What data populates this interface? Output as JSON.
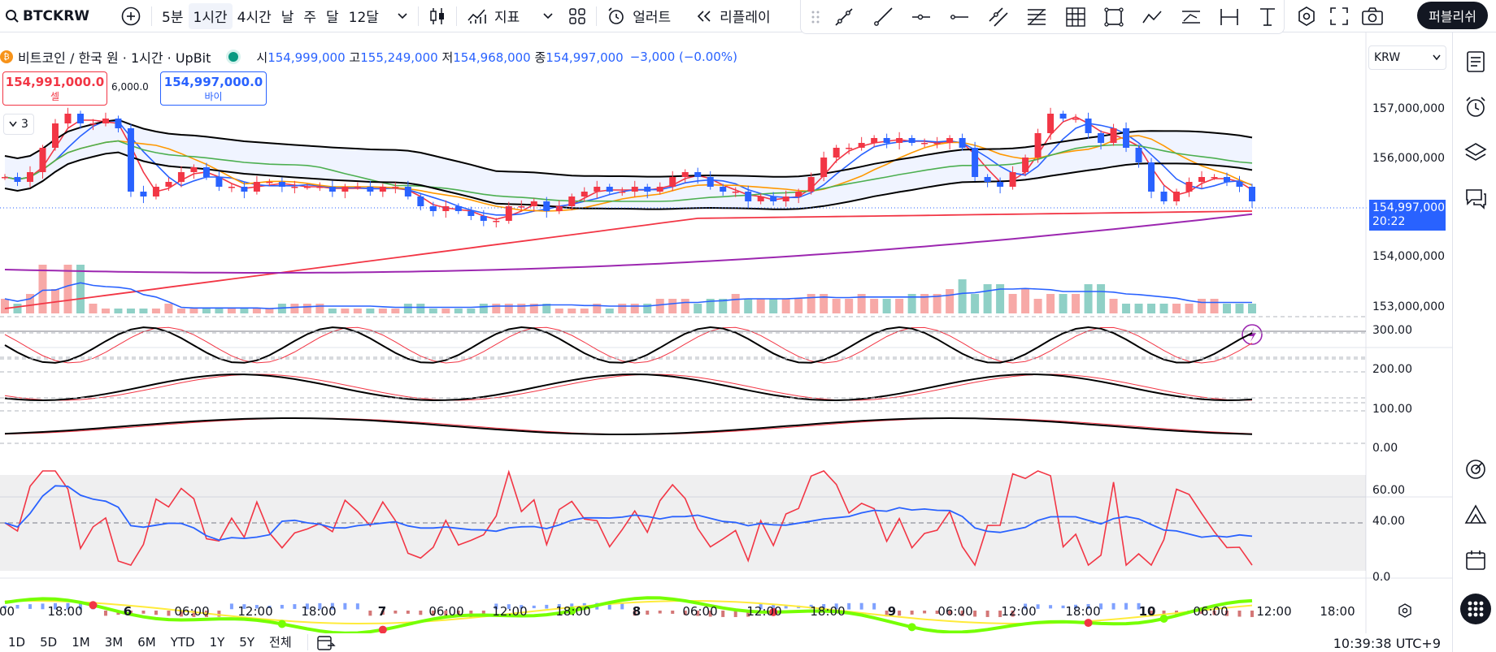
{
  "toolbar": {
    "symbol": "BTCKRW",
    "intervals": [
      "5분",
      "1시간",
      "4시간",
      "날",
      "주",
      "달",
      "12달"
    ],
    "active_interval": "1시간",
    "indicators_label": "지표",
    "alert_label": "얼러트",
    "replay_label": "리플레이",
    "publish_label": "퍼블리쉬"
  },
  "legend": {
    "title": "비트코인 / 한국 원 · 1시간 · UpBit",
    "open_label": "시",
    "open": "154,999,000",
    "high_label": "고",
    "high": "155,249,000",
    "low_label": "저",
    "low": "154,968,000",
    "close_label": "종",
    "close": "154,997,000",
    "change": "−3,000 (−0.00%)"
  },
  "trade": {
    "sell_price": "154,991,000.0",
    "sell_label": "셀",
    "buy_price": "154,997,000.0",
    "buy_label": "바이",
    "spread": "6,000.0"
  },
  "collapse_count": "3",
  "currency": "KRW",
  "price_axis": [
    "157,000,000",
    "156,000,000",
    "154,000,000",
    "153,000,000"
  ],
  "last_price": {
    "value": "154,997,000",
    "countdown": "20:22"
  },
  "osc_axis": [
    "300.00",
    "200.00",
    "100.00",
    "0.00"
  ],
  "rsi_axis": [
    "60.00",
    "40.00"
  ],
  "wave_axis": [
    "0.0"
  ],
  "time_axis": [
    ":00",
    "18:00",
    "6",
    "06:00",
    "12:00",
    "18:00",
    "7",
    "06:00",
    "12:00",
    "18:00",
    "8",
    "06:00",
    "12:00",
    "18:00",
    "9",
    "06:00",
    "12:00",
    "18:00",
    "10",
    "06:00",
    "12:00",
    "18:00"
  ],
  "ranges": [
    "1D",
    "5D",
    "1M",
    "3M",
    "6M",
    "YTD",
    "1Y",
    "5Y",
    "전체"
  ],
  "clock": "10:39:38 UTC+9",
  "colors": {
    "up": "#f23645",
    "down": "#2962ff",
    "accent": "#2962ff"
  },
  "chart_data": {
    "type": "candlestick",
    "symbol": "BTCKRW",
    "y_range": [
      152800000,
      157800000
    ],
    "closes": [
      155500000,
      155400000,
      155600000,
      156100000,
      156600000,
      156800000,
      156600000,
      156600000,
      156700000,
      156500000,
      155200000,
      155100000,
      155300000,
      155400000,
      155600000,
      155700000,
      155500000,
      155300000,
      155300000,
      155200000,
      155400000,
      155400000,
      155300000,
      155300000,
      155300000,
      155300000,
      155200000,
      155300000,
      155300000,
      155200000,
      155300000,
      155300000,
      155100000,
      154900000,
      154800000,
      154900000,
      154800000,
      154700000,
      154600000,
      154600000,
      154900000,
      154900000,
      155000000,
      154800000,
      154900000,
      155100000,
      155200000,
      155300000,
      155200000,
      155200000,
      155300000,
      155200000,
      155300000,
      155500000,
      155600000,
      155500000,
      155300000,
      155200000,
      155200000,
      155000000,
      155100000,
      155000000,
      155100000,
      155200000,
      155500000,
      155900000,
      156100000,
      156100000,
      156200000,
      156300000,
      156200000,
      156300000,
      156200000,
      156200000,
      156200000,
      156300000,
      156100000,
      155500000,
      155400000,
      155300000,
      155600000,
      155900000,
      156400000,
      156800000,
      156700000,
      156700000,
      156400000,
      156200000,
      156500000,
      156100000,
      155800000,
      155200000,
      155000000,
      155200000,
      155400000,
      155500000,
      155500000,
      155400000,
      155300000,
      155000000
    ],
    "volume_relative": [
      0.3,
      0.2,
      0.4,
      1.0,
      0.5,
      1.0,
      1.0,
      0.2,
      0.1,
      0.1,
      0.1,
      0.1,
      0.1,
      0.2,
      0.1,
      0.1,
      0.1,
      0.1,
      0.1,
      0.1,
      0.1,
      0.1,
      0.2,
      0.2,
      0.2,
      0.2,
      0.1,
      0.1,
      0.1,
      0.1,
      0.1,
      0.1,
      0.2,
      0.2,
      0.1,
      0.1,
      0.1,
      0.1,
      0.2,
      0.2,
      0.2,
      0.2,
      0.2,
      0.2,
      0.1,
      0.1,
      0.1,
      0.2,
      0.1,
      0.2,
      0.2,
      0.2,
      0.3,
      0.3,
      0.3,
      0.2,
      0.3,
      0.3,
      0.4,
      0.3,
      0.3,
      0.3,
      0.3,
      0.3,
      0.4,
      0.4,
      0.3,
      0.3,
      0.4,
      0.3,
      0.3,
      0.3,
      0.4,
      0.4,
      0.4,
      0.5,
      0.7,
      0.4,
      0.6,
      0.6,
      0.4,
      0.5,
      0.3,
      0.4,
      0.4,
      0.4,
      0.6,
      0.6,
      0.3,
      0.2,
      0.2,
      0.2,
      0.2,
      0.2,
      0.2,
      0.3,
      0.3,
      0.2,
      0.2,
      0.2
    ]
  }
}
